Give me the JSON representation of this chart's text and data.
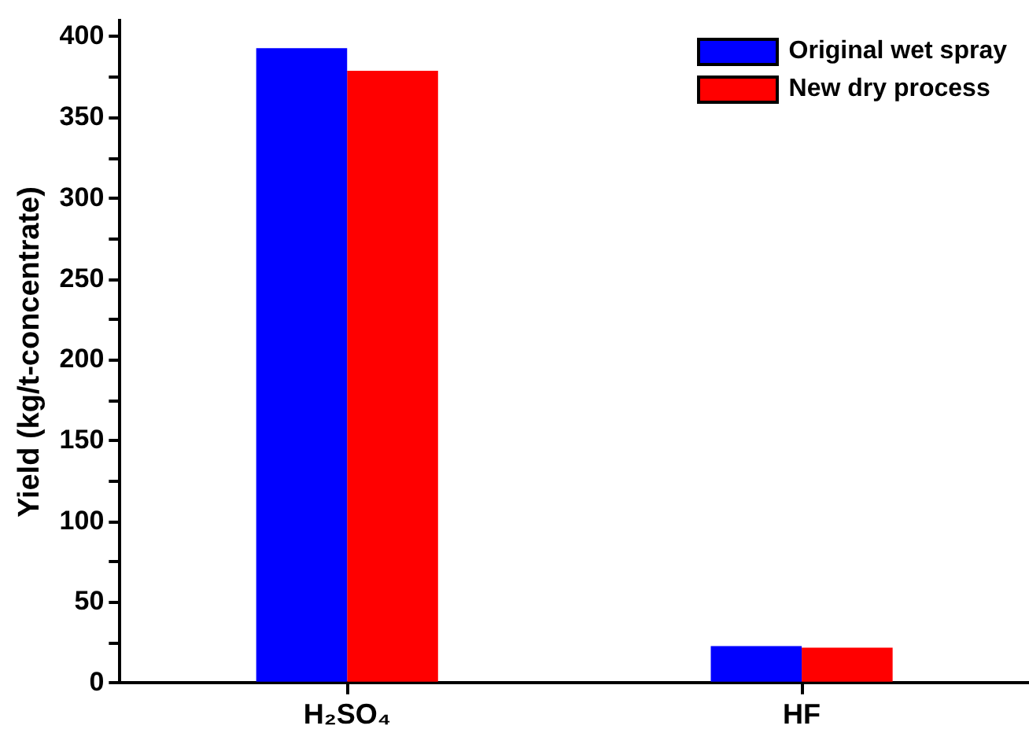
{
  "chart_data": {
    "type": "bar",
    "ylabel": "Yield (kg/t-concentrate)",
    "categories": [
      "H₂SO₄",
      "HF"
    ],
    "series": [
      {
        "name": "Original wet spray",
        "color": "#0000ff",
        "values": [
          393,
          23
        ]
      },
      {
        "name": "New dry process",
        "color": "#ff0000",
        "values": [
          379,
          22
        ]
      }
    ],
    "ylim": [
      0,
      410
    ],
    "yticks": [
      0,
      {
        "value": 25,
        "label": null
      },
      50,
      {
        "value": 75,
        "label": null
      },
      100,
      {
        "value": 125,
        "label": null
      },
      150,
      {
        "value": 175,
        "label": null
      },
      200,
      {
        "value": 225,
        "label": null
      },
      250,
      {
        "value": 275,
        "label": null
      },
      300,
      {
        "value": 325,
        "label": null
      },
      350,
      {
        "value": 375,
        "label": null
      },
      400
    ],
    "grid": false,
    "legend": "top right"
  }
}
